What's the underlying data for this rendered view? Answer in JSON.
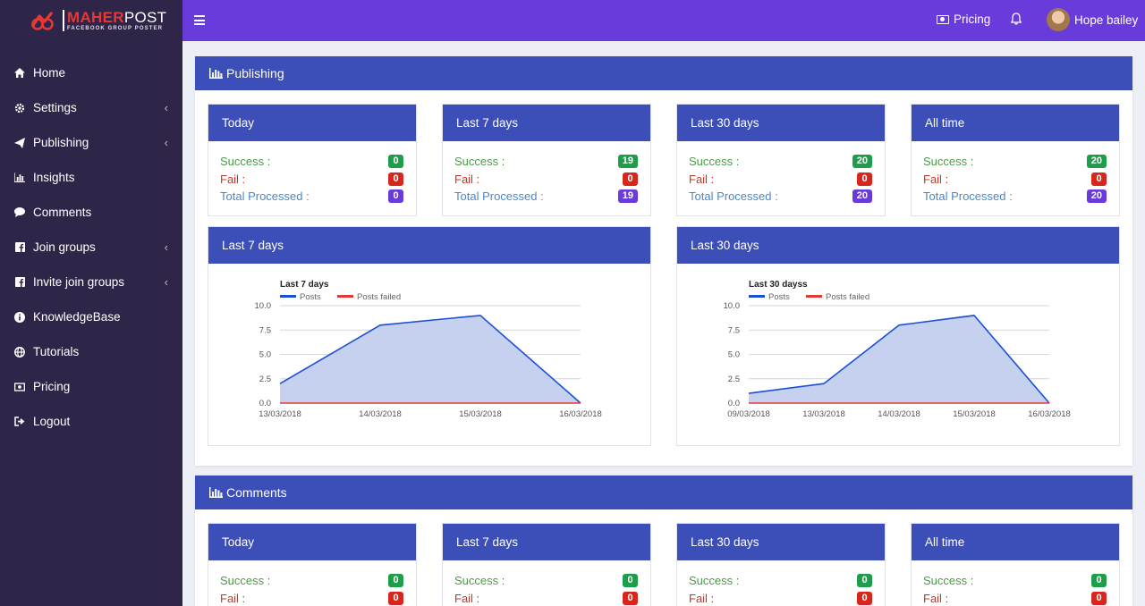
{
  "app": {
    "logo_prefix": "MAHER",
    "logo_suffix": "POST",
    "logo_subtitle": "FACEBOOK GROUP POSTER"
  },
  "sidebar": {
    "items": [
      {
        "label": "Home",
        "icon": "home-icon",
        "has_submenu": false
      },
      {
        "label": "Settings",
        "icon": "gear-icon",
        "has_submenu": true
      },
      {
        "label": "Publishing",
        "icon": "send-icon",
        "has_submenu": true
      },
      {
        "label": "Insights",
        "icon": "bar-chart-icon",
        "has_submenu": false
      },
      {
        "label": "Comments",
        "icon": "comment-icon",
        "has_submenu": false
      },
      {
        "label": "Join groups",
        "icon": "facebook-icon",
        "has_submenu": true
      },
      {
        "label": "Invite join groups",
        "icon": "facebook-icon",
        "has_submenu": true
      },
      {
        "label": "KnowledgeBase",
        "icon": "info-icon",
        "has_submenu": false
      },
      {
        "label": "Tutorials",
        "icon": "globe-icon",
        "has_submenu": false
      },
      {
        "label": "Pricing",
        "icon": "money-icon",
        "has_submenu": false
      },
      {
        "label": "Logout",
        "icon": "logout-icon",
        "has_submenu": false
      }
    ]
  },
  "topbar": {
    "pricing_label": "Pricing",
    "user_name": "Hope bailey"
  },
  "colors": {
    "topbar": "#6a3bdb",
    "sidebar": "#2f2548",
    "header_blue": "#3c4eb8",
    "success": "#1e9e4a",
    "fail": "#d9261c"
  },
  "publishing": {
    "title": "Publishing",
    "stats": [
      {
        "period": "Today",
        "success_label": "Success :",
        "success": "0",
        "fail_label": "Fail :",
        "fail": "0",
        "total_label": "Total Processed :",
        "total": "0"
      },
      {
        "period": "Last 7 days",
        "success_label": "Success :",
        "success": "19",
        "fail_label": "Fail :",
        "fail": "0",
        "total_label": "Total Processed :",
        "total": "19"
      },
      {
        "period": "Last 30 days",
        "success_label": "Success :",
        "success": "20",
        "fail_label": "Fail :",
        "fail": "0",
        "total_label": "Total Processed :",
        "total": "20"
      },
      {
        "period": "All time",
        "success_label": "Success :",
        "success": "20",
        "fail_label": "Fail :",
        "fail": "0",
        "total_label": "Total Processed :",
        "total": "20"
      }
    ],
    "chart_cards": [
      {
        "header": "Last 7 days"
      },
      {
        "header": "Last 30 days"
      }
    ]
  },
  "comments": {
    "title": "Comments",
    "stats": [
      {
        "period": "Today",
        "success_label": "Success :",
        "success": "0",
        "fail_label": "Fail :",
        "fail": "0"
      },
      {
        "period": "Last 7 days",
        "success_label": "Success :",
        "success": "0",
        "fail_label": "Fail :",
        "fail": "0"
      },
      {
        "period": "Last 30 days",
        "success_label": "Success :",
        "success": "0",
        "fail_label": "Fail :",
        "fail": "0"
      },
      {
        "period": "All time",
        "success_label": "Success :",
        "success": "0",
        "fail_label": "Fail :",
        "fail": "0"
      }
    ]
  },
  "chart_data": [
    {
      "type": "area",
      "title": "Last 7 days",
      "x": [
        "13/03/2018",
        "14/03/2018",
        "15/03/2018",
        "16/03/2018"
      ],
      "series": [
        {
          "name": "Posts",
          "values": [
            2,
            8,
            9,
            0
          ],
          "color": "#1a4fd6",
          "fill": "#c3cfee"
        },
        {
          "name": "Posts failed",
          "values": [
            0,
            0,
            0,
            0
          ],
          "color": "#e53935"
        }
      ],
      "yticks": [
        "0.0",
        "2.5",
        "5.0",
        "7.5",
        "10.0"
      ],
      "ylim": [
        0,
        10
      ],
      "grid": true,
      "legend": "top-left"
    },
    {
      "type": "area",
      "title": "Last 30 dayss",
      "x": [
        "09/03/2018",
        "13/03/2018",
        "14/03/2018",
        "15/03/2018",
        "16/03/2018"
      ],
      "series": [
        {
          "name": "Posts",
          "values": [
            1,
            2,
            8,
            9,
            0
          ],
          "color": "#1a4fd6",
          "fill": "#c3cfee"
        },
        {
          "name": "Posts failed",
          "values": [
            0,
            0,
            0,
            0,
            0
          ],
          "color": "#e53935"
        }
      ],
      "yticks": [
        "0.0",
        "2.5",
        "5.0",
        "7.5",
        "10.0"
      ],
      "ylim": [
        0,
        10
      ],
      "grid": true,
      "legend": "top-left"
    }
  ]
}
